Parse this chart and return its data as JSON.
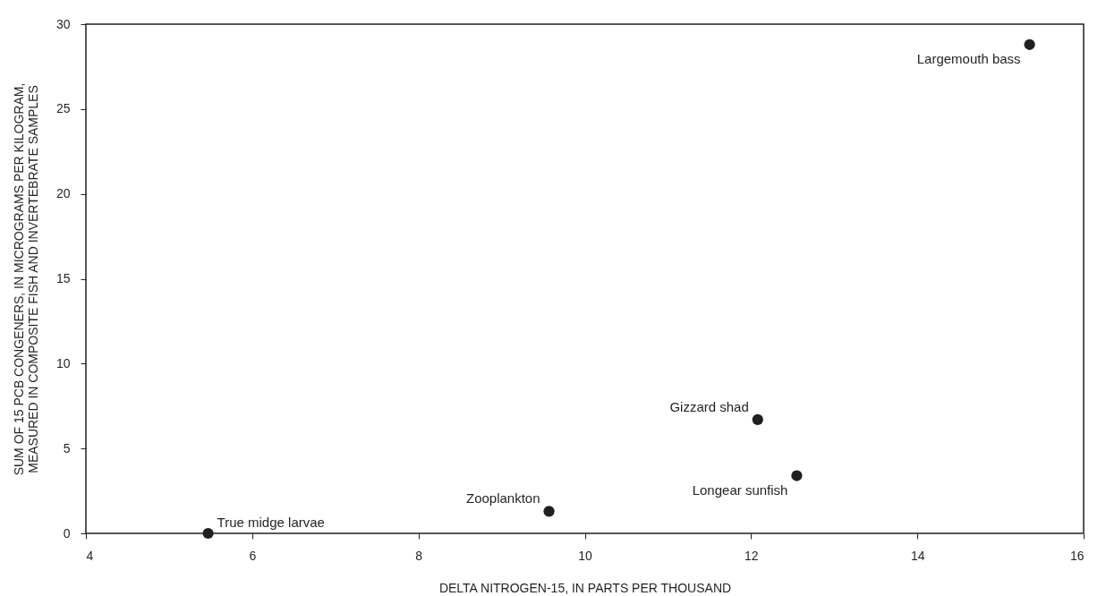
{
  "chart_data": {
    "type": "scatter",
    "xlabel": "DELTA NITROGEN-15, IN PARTS PER THOUSAND",
    "ylabel": "SUM OF 15 PCB CONGENERS, IN MICROGRAMS PER KILOGRAM, MEASURED IN COMPOSITE FISH AND INVERTEBRATE SAMPLES",
    "series": [
      {
        "color": "#231f20",
        "x": [
          5.47,
          9.57,
          12.08,
          12.55,
          15.35
        ],
        "values": [
          0,
          1.3,
          6.7,
          3.4,
          28.8
        ]
      }
    ],
    "xlim": [
      4,
      16
    ],
    "xticks": [
      4,
      6,
      8,
      10,
      12,
      14,
      16
    ],
    "ylim": [
      0,
      30
    ],
    "yticks": [
      0,
      5,
      10,
      15,
      20,
      25,
      30
    ],
    "grid": false,
    "marker": "circle",
    "annotations": [
      {
        "text": "True midge larvae",
        "x": 5.47,
        "y": 0
      },
      {
        "text": "Zooplankton",
        "x": 9.57,
        "y": 1.3
      },
      {
        "text": "Gizzard shad",
        "x": 12.08,
        "y": 6.7
      },
      {
        "text": "Longear sunfish",
        "x": 12.55,
        "y": 3.4
      },
      {
        "text": "Largemouth bass",
        "x": 15.35,
        "y": 28.8
      }
    ]
  }
}
